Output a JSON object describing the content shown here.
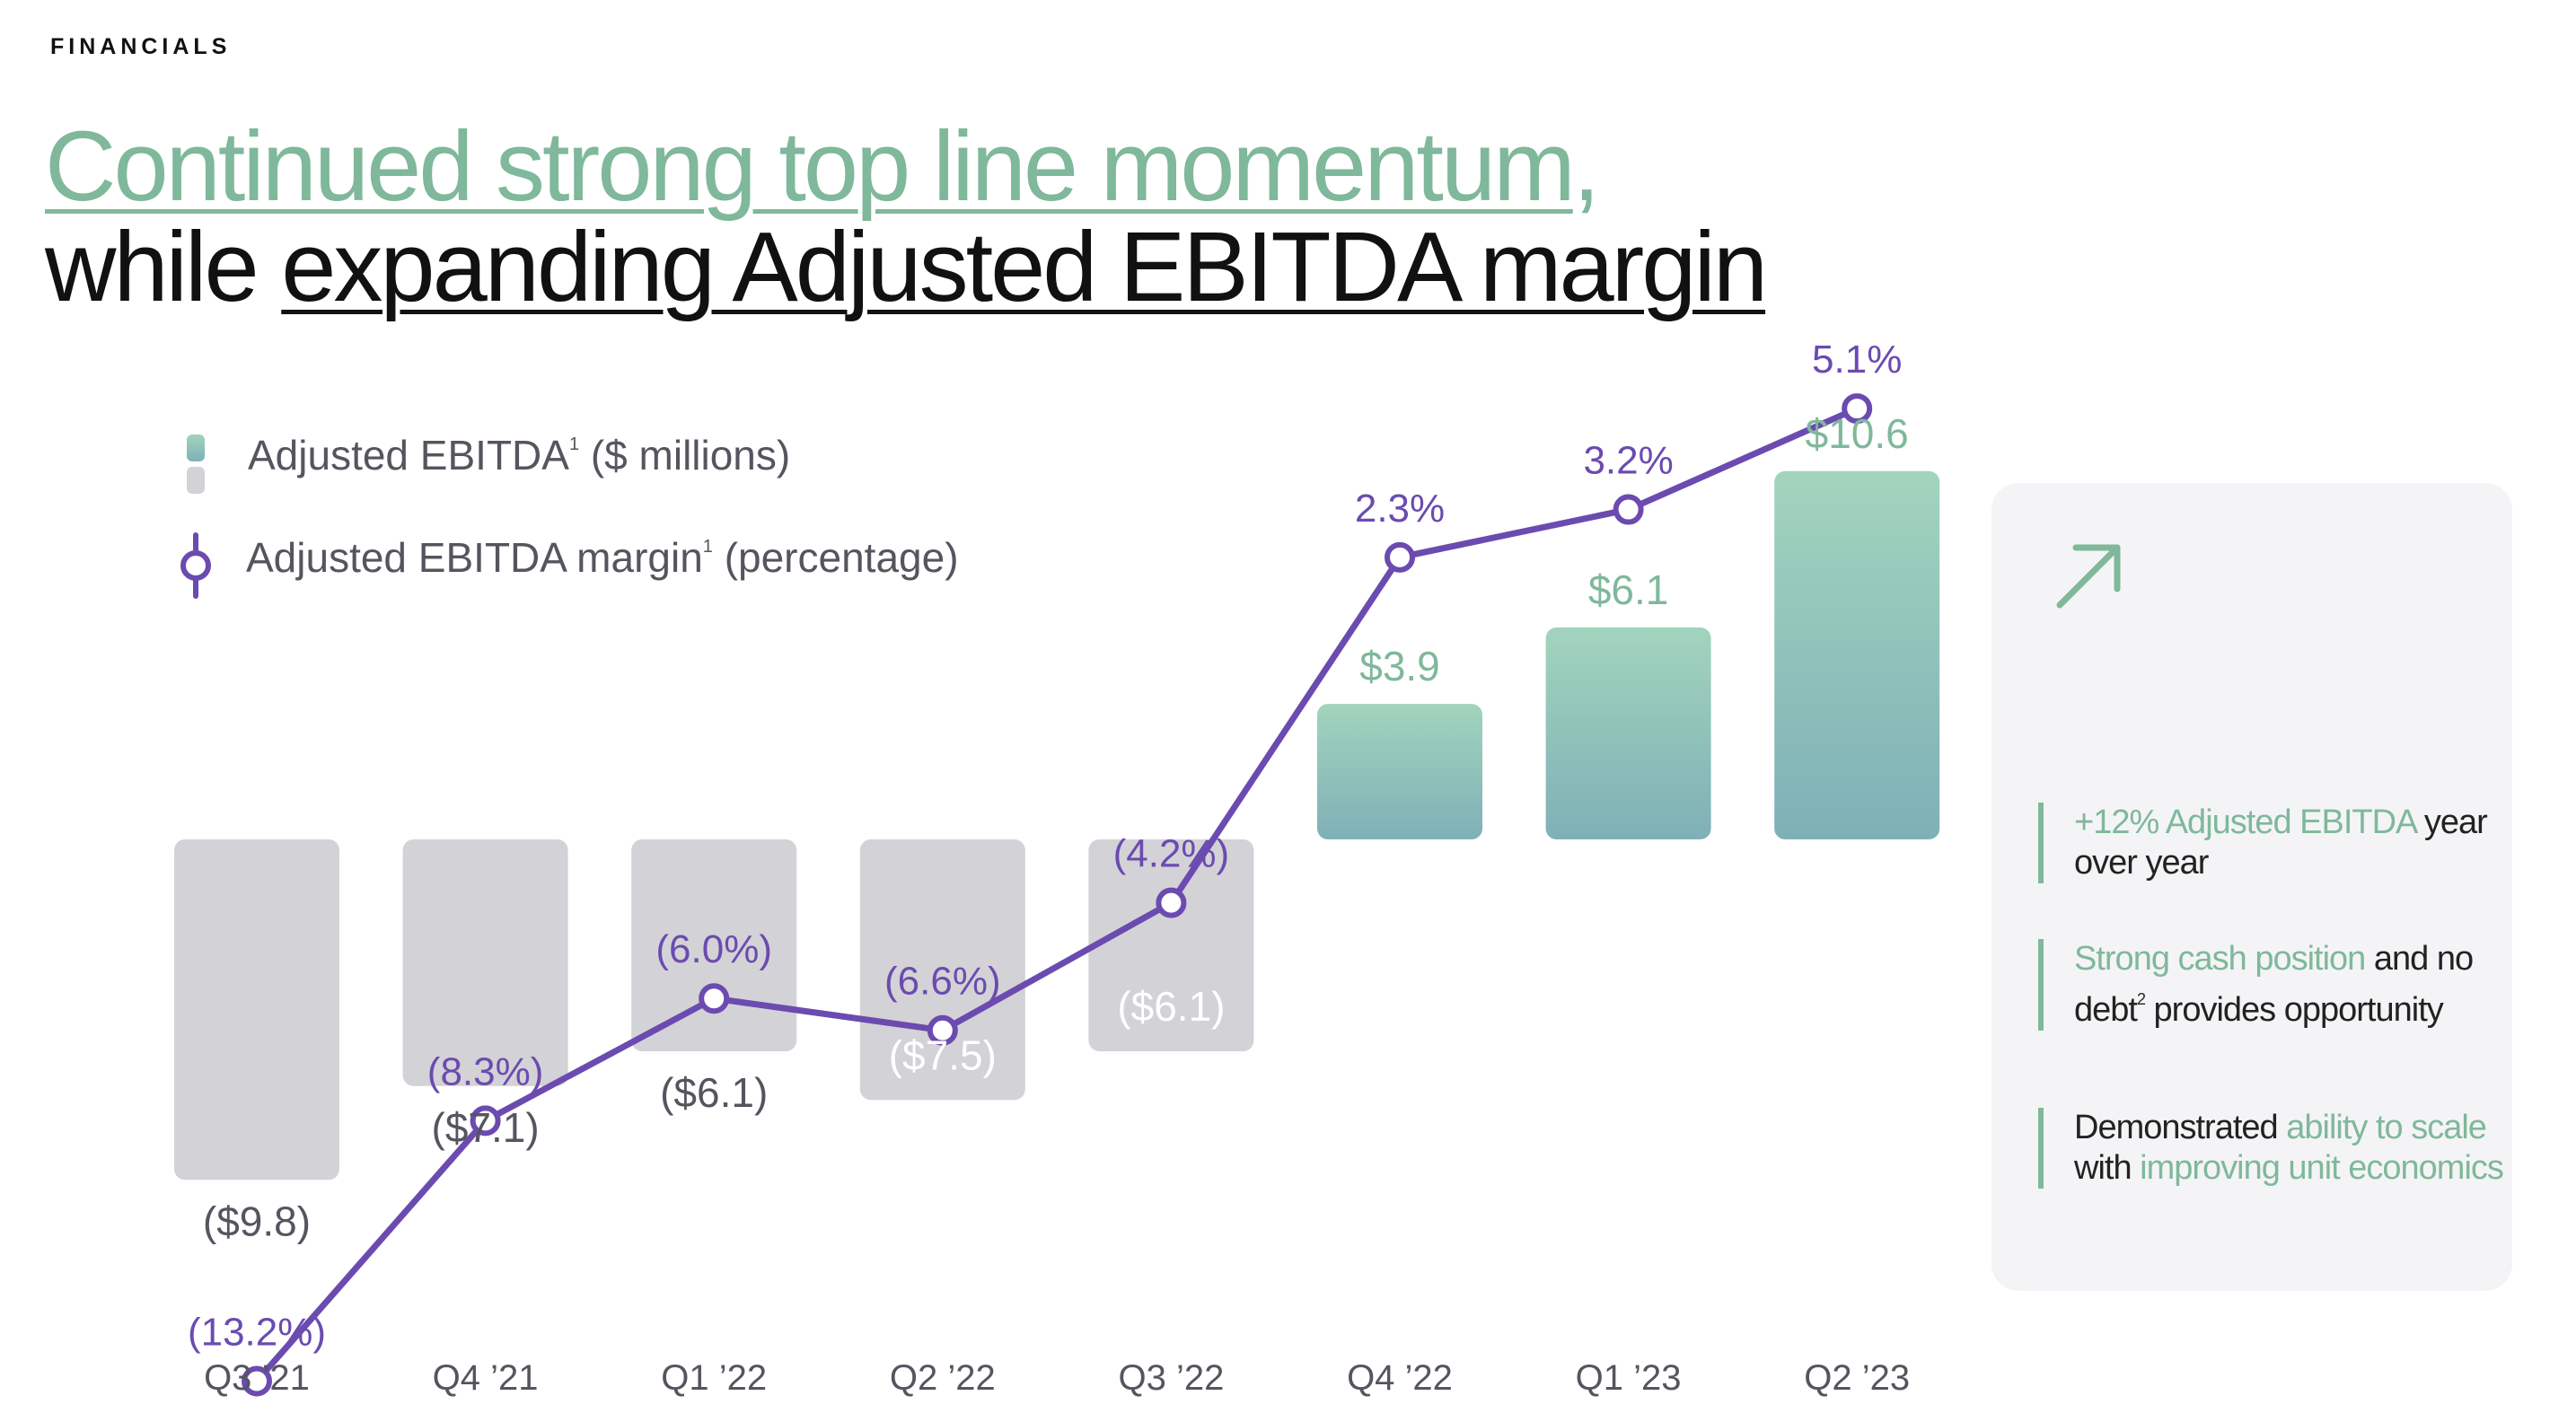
{
  "section_label": "FINANCIALS",
  "headline": {
    "line1_underlined": "Continued strong top line momentum",
    "line1_trailing": ",",
    "line2_prefix": "while ",
    "line2_underlined": "expanding Adjusted EBITDA margin"
  },
  "legend": {
    "bars_label": "Adjusted EBITDA",
    "bars_footnote": "1",
    "bars_units": " ($ millions)",
    "line_label": "Adjusted EBITDA margin",
    "line_footnote": "1",
    "line_units": " (percentage)"
  },
  "chart_data": {
    "type": "bar",
    "categories": [
      "Q3 '21",
      "Q4 '21",
      "Q1 '22",
      "Q2 '22",
      "Q3 '22",
      "Q4 '22",
      "Q1 '23",
      "Q2 '23"
    ],
    "series": [
      {
        "name": "Adjusted EBITDA ($ millions)",
        "type": "bar",
        "values": [
          -9.8,
          -7.1,
          -6.1,
          -7.5,
          -6.1,
          3.9,
          6.1,
          10.6
        ],
        "labels": [
          "($9.8)",
          "($7.1)",
          "($6.1)",
          "($7.5)",
          "($6.1)",
          "$3.9",
          "$6.1",
          "$10.6"
        ]
      },
      {
        "name": "Adjusted EBITDA margin (percentage)",
        "type": "line",
        "values": [
          -13.2,
          -8.3,
          -6.0,
          -6.6,
          -4.2,
          2.3,
          3.2,
          5.1
        ],
        "labels": [
          "(13.2%)",
          "(8.3%)",
          "(6.0%)",
          "(6.6%)",
          "(4.2%)",
          "2.3%",
          "3.2%",
          "5.1%"
        ]
      }
    ],
    "colors": {
      "negative_bar": "#d3d2d6",
      "positive_bar_top": "#a2d4bd",
      "positive_bar_bottom": "#7fb0b7",
      "line": "#6b4bb0",
      "positive_label": "#7fb89a",
      "negative_label": "#55555f",
      "axis_label": "#55555f"
    }
  },
  "highlights": [
    {
      "parts": [
        {
          "text": "+12% Adjusted EBITDA",
          "green": true
        },
        {
          "text": " year over year",
          "green": false
        }
      ]
    },
    {
      "parts": [
        {
          "text": "Strong cash position",
          "green": true
        },
        {
          "text": " and no debt",
          "green": false
        },
        {
          "text": "2",
          "green": false,
          "sup": true
        },
        {
          "text": " provides opportunity",
          "green": false
        }
      ]
    },
    {
      "parts": [
        {
          "text": "Demonstrated ",
          "green": false
        },
        {
          "text": "ability to scale",
          "green": true
        },
        {
          "text": " with ",
          "green": false
        },
        {
          "text": "improving unit economics",
          "green": true
        }
      ]
    }
  ],
  "icons": {
    "trend": "arrow-up-right-icon"
  }
}
